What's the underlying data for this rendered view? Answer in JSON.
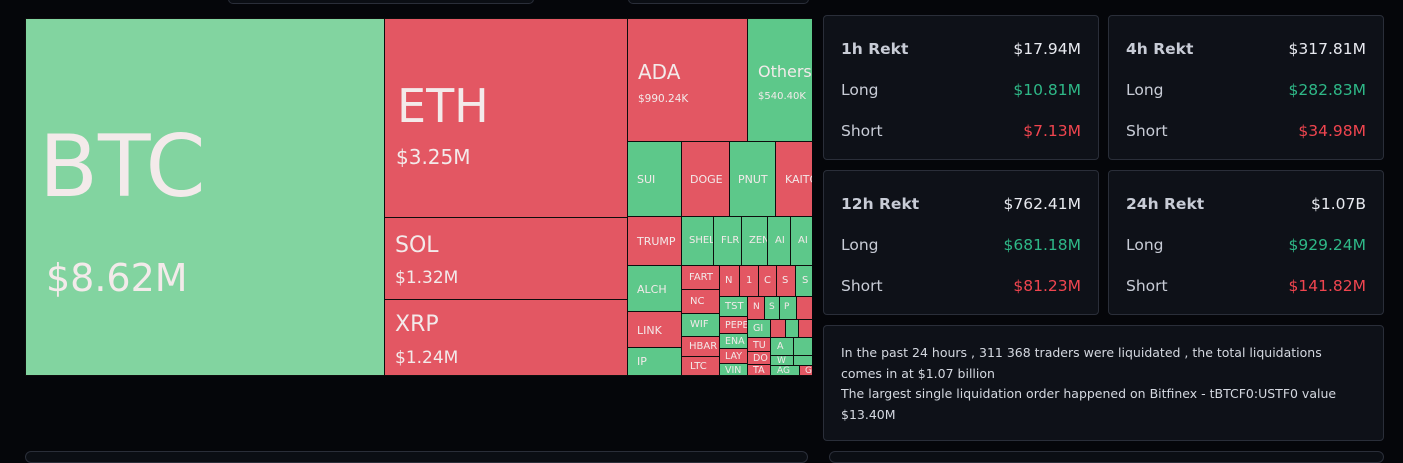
{
  "treemap": {
    "btc": {
      "symbol": "BTC",
      "value": "$8.62M"
    },
    "eth": {
      "symbol": "ETH",
      "value": "$3.25M"
    },
    "sol": {
      "symbol": "SOL",
      "value": "$1.32M"
    },
    "xrp": {
      "symbol": "XRP",
      "value": "$1.24M"
    },
    "ada": {
      "symbol": "ADA",
      "value": "$990.24K"
    },
    "others": {
      "symbol": "Others",
      "value": "$540.40K"
    },
    "small": [
      "SUI",
      "DOGE",
      "PNUT",
      "KAITO",
      "TRUMP",
      "SHELL",
      "FLR",
      "ZEN",
      "AI",
      "AI",
      "ALCH",
      "FART",
      "N",
      "1",
      "C",
      "S",
      "S",
      "NC",
      "TST",
      "N",
      "S",
      "P",
      "LINK",
      "WIF",
      "PEPE",
      "GI",
      "HBAR",
      "ENA",
      "TU",
      "A",
      "IP",
      "LTC",
      "LAY",
      "DO",
      "W",
      "VIN",
      "TA",
      "AG",
      "G"
    ],
    "colors": {
      "up": "#82d4a0",
      "up_small": "#5dc88a",
      "down": "#e35763"
    }
  },
  "stats": {
    "h1": {
      "title": "1h Rekt",
      "total": "$17.94M",
      "long_label": "Long",
      "long": "$10.81M",
      "short_label": "Short",
      "short": "$7.13M"
    },
    "h4": {
      "title": "4h Rekt",
      "total": "$317.81M",
      "long_label": "Long",
      "long": "$282.83M",
      "short_label": "Short",
      "short": "$34.98M"
    },
    "h12": {
      "title": "12h Rekt",
      "total": "$762.41M",
      "long_label": "Long",
      "long": "$681.18M",
      "short_label": "Short",
      "short": "$81.23M"
    },
    "h24": {
      "title": "24h Rekt",
      "total": "$1.07B",
      "long_label": "Long",
      "long": "$929.24M",
      "short_label": "Short",
      "short": "$141.82M"
    }
  },
  "summary": {
    "line1": "In the past 24 hours , 311 368 traders were liquidated , the total liquidations comes in at $1.07 billion",
    "line2": "The largest single liquidation order happened on Bitfinex - tBTCF0:USTF0 value $13.40M"
  },
  "colors": {
    "long": "#2eb887",
    "short": "#f0454f",
    "card_bg": "#0e1118",
    "page_bg": "#05060a"
  }
}
